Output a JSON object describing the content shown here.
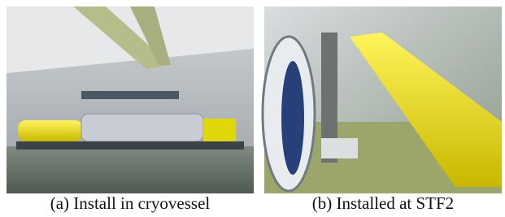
{
  "figures": [
    {
      "caption": "(a) Install in cryovessel"
    },
    {
      "caption": "(b) Installed at STF2"
    }
  ]
}
